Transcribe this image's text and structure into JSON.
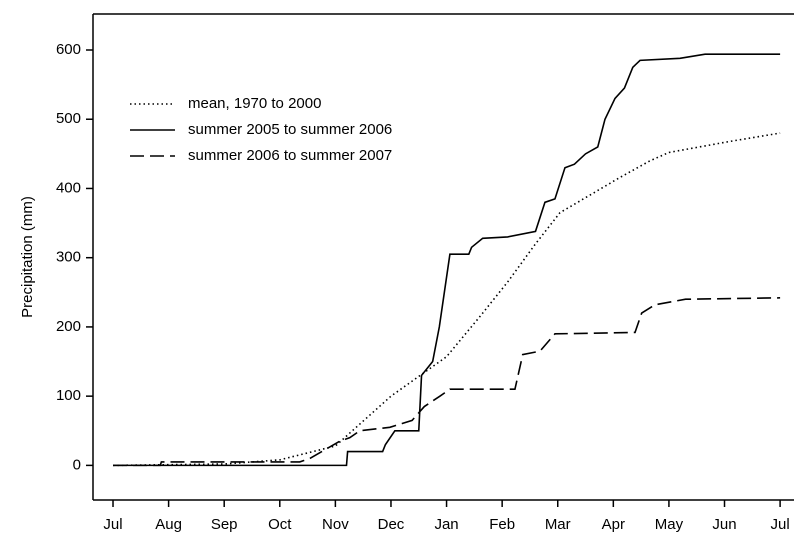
{
  "chart_data": {
    "type": "line",
    "ylabel": "Precipitation (mm)",
    "xlim": [
      -0.36,
      12.25
    ],
    "xticks": [
      {
        "value": 0,
        "label": "Jul"
      },
      {
        "value": 1,
        "label": "Aug"
      },
      {
        "value": 2,
        "label": "Sep"
      },
      {
        "value": 3,
        "label": "Oct"
      },
      {
        "value": 4,
        "label": "Nov"
      },
      {
        "value": 5,
        "label": "Dec"
      },
      {
        "value": 6,
        "label": "Jan"
      },
      {
        "value": 7,
        "label": "Feb"
      },
      {
        "value": 8,
        "label": "Mar"
      },
      {
        "value": 9,
        "label": "Apr"
      },
      {
        "value": 10,
        "label": "May"
      },
      {
        "value": 11,
        "label": "Jun"
      },
      {
        "value": 12,
        "label": "Jul"
      }
    ],
    "ylim": [
      -50,
      652
    ],
    "yticks": [
      0,
      100,
      200,
      300,
      400,
      500,
      600
    ],
    "legend": "upper left",
    "series": [
      {
        "name": "mean, 1970 to 2000",
        "color": "#000000",
        "style": "dotted",
        "x": [
          0,
          2,
          3,
          4,
          5,
          6,
          6.6,
          7.1,
          7.6,
          8.04,
          9.1,
          9.66,
          10,
          11.1,
          12
        ],
        "values": [
          0,
          2,
          8,
          28,
          100,
          157,
          215,
          265,
          320,
          365,
          415,
          440,
          452,
          468,
          480
        ]
      },
      {
        "name": "summer 2005 to summer 2006",
        "color": "#000000",
        "style": "solid",
        "x": [
          0,
          4.2,
          4.22,
          4.85,
          4.9,
          5.07,
          5.5,
          5.55,
          5.75,
          5.87,
          6.06,
          6.4,
          6.45,
          6.65,
          7.1,
          7.6,
          7.77,
          7.95,
          8.13,
          8.3,
          8.5,
          8.72,
          8.85,
          9.03,
          9.2,
          9.35,
          9.48,
          10.2,
          10.65,
          12
        ],
        "values": [
          0,
          0,
          20,
          20,
          30,
          50,
          50,
          130,
          150,
          200,
          305,
          305,
          315,
          328,
          330,
          338,
          380,
          385,
          430,
          435,
          450,
          460,
          500,
          530,
          545,
          575,
          585,
          588,
          594,
          594
        ]
      },
      {
        "name": "summer 2006 to summer 2007",
        "color": "#000000",
        "style": "dashed",
        "x": [
          0,
          0.85,
          0.87,
          3.36,
          3.54,
          4.08,
          4.26,
          4.44,
          4.98,
          5.38,
          5.6,
          5.88,
          6.06,
          7.23,
          7.37,
          7.68,
          7.95,
          9.39,
          9.51,
          9.75,
          10.3,
          12
        ],
        "values": [
          0,
          0,
          5,
          5,
          10,
          35,
          40,
          50,
          55,
          65,
          85,
          100,
          110,
          110,
          160,
          165,
          190,
          192,
          220,
          232,
          240,
          242
        ]
      }
    ]
  }
}
